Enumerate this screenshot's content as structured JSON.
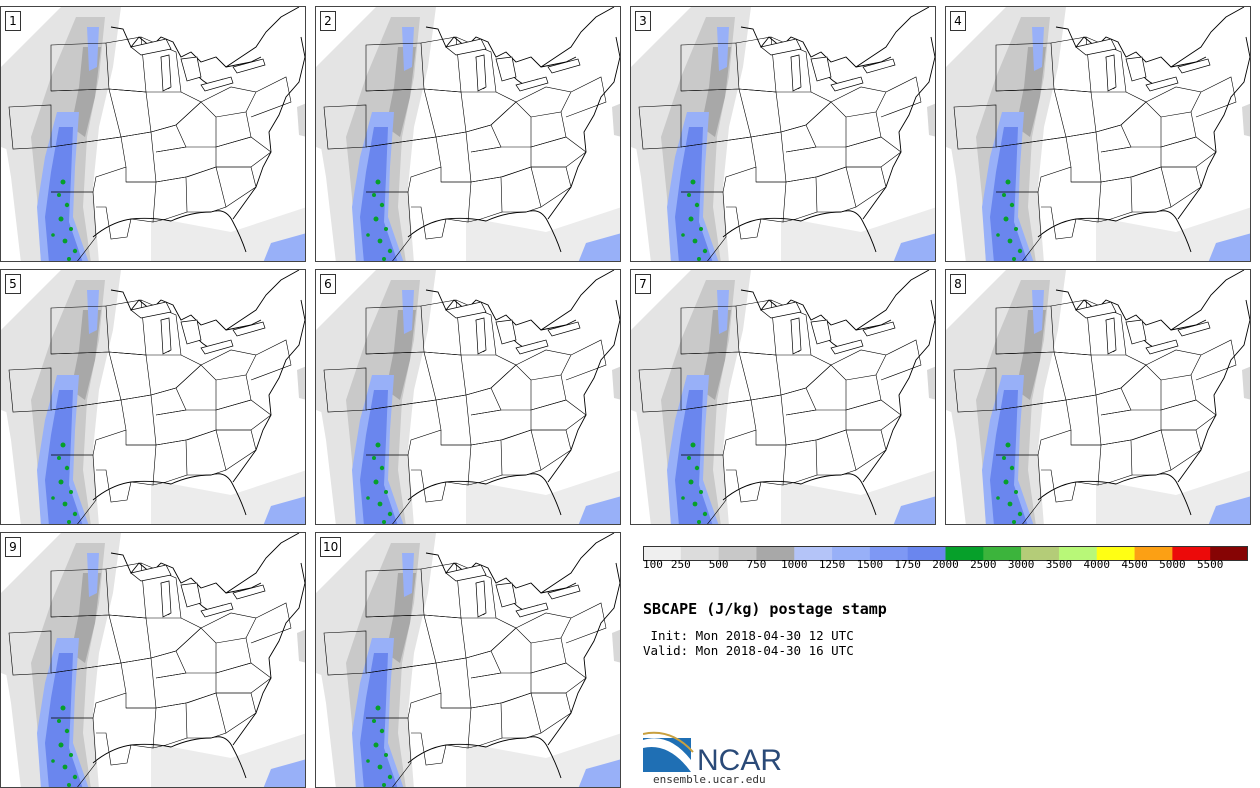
{
  "panels": [
    {
      "label": "1"
    },
    {
      "label": "2"
    },
    {
      "label": "3"
    },
    {
      "label": "4"
    },
    {
      "label": "5"
    },
    {
      "label": "6"
    },
    {
      "label": "7"
    },
    {
      "label": "8"
    },
    {
      "label": "9"
    },
    {
      "label": "10"
    }
  ],
  "colorbar": {
    "ticks": [
      "100",
      "250",
      "500",
      "750",
      "1000",
      "1250",
      "1500",
      "1750",
      "2000",
      "2500",
      "3000",
      "3500",
      "4000",
      "4500",
      "5000",
      "5500"
    ],
    "colors": [
      "#efefef",
      "#dcdcdc",
      "#c8c8c8",
      "#a8a8a8",
      "#b4c4f8",
      "#98b0f8",
      "#7e98f4",
      "#6a86ee",
      "#06a02a",
      "#3cb43c",
      "#b4cc78",
      "#b8f878",
      "#ffff14",
      "#fca014",
      "#ec0a0a",
      "#860404"
    ]
  },
  "title": "SBCAPE (J/kg) postage stamp",
  "init_line": " Init: Mon 2018-04-30 12 UTC",
  "valid_line": "Valid: Mon 2018-04-30 16 UTC",
  "logo": {
    "text": "NCAR",
    "url": "ensemble.ucar.edu"
  }
}
